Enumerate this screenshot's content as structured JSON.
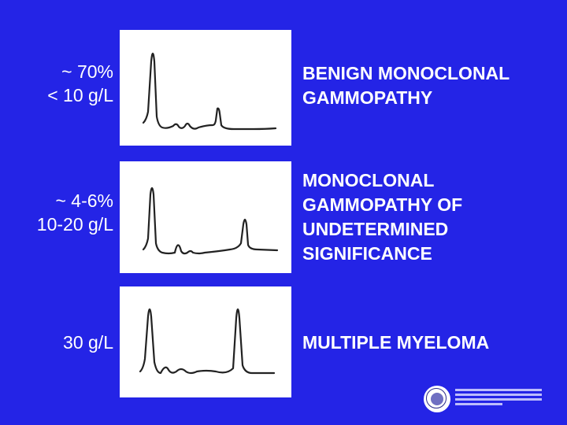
{
  "rows": [
    {
      "left_lines": [
        "~ 70%",
        "< 10 g/L"
      ],
      "diagnosis": "BENIGN MONOCLONAL\nGAMMOPATHY"
    },
    {
      "left_lines": [
        "~ 4-6%",
        "10-20 g/L"
      ],
      "diagnosis": "MONOCLONAL\nGAMMOPATHY OF\nUNDETERMINED\nSIGNIFICANCE"
    },
    {
      "left_lines": [
        "30 g/L"
      ],
      "diagnosis": "MULTIPLE MYELOMA"
    }
  ],
  "colors": {
    "background": "#2424e6",
    "text": "#ffffff",
    "panel": "#ffffff",
    "trace": "#222222"
  },
  "logo": {
    "icon": "university-seal-icon"
  }
}
